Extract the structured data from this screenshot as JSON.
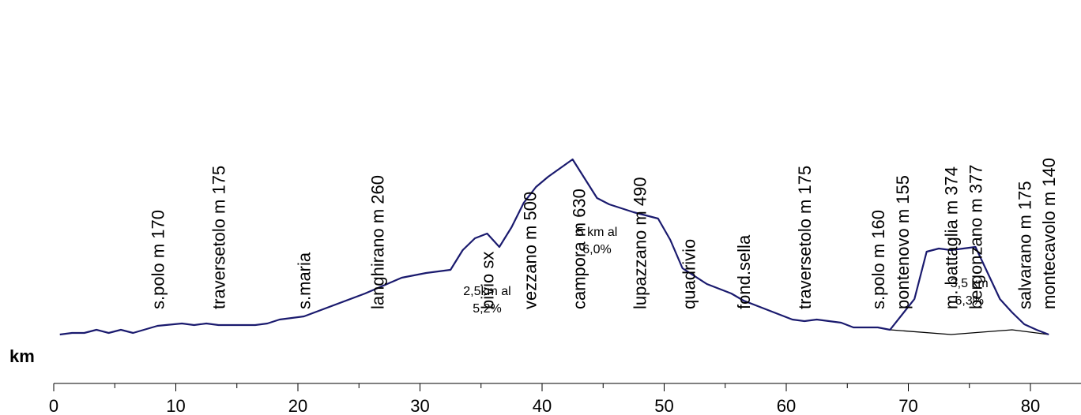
{
  "chart_data": {
    "type": "line",
    "x_unit_label": "km",
    "xlim": [
      0,
      84
    ],
    "x_ticks": [
      0,
      10,
      20,
      30,
      40,
      50,
      60,
      70,
      80
    ],
    "main_series": {
      "color": "#1a1a6e",
      "x": [
        0.5,
        1.5,
        2.5,
        3.5,
        4.5,
        5.5,
        6.5,
        8.5,
        10.5,
        11.5,
        12.5,
        13.5,
        16.5,
        17.5,
        18.5,
        20.5,
        25.5,
        28.5,
        30.5,
        32.5,
        33.5,
        34.5,
        35.5,
        36.5,
        37.5,
        38.5,
        39.5,
        40.5,
        42.5,
        44.5,
        45.5,
        47.5,
        49.5,
        50.5,
        51.5,
        53.5,
        55.5,
        56.5,
        59.5,
        60.5,
        61.5,
        62.5,
        64.5,
        65.5,
        67.5,
        68.5,
        70.5,
        71.5,
        72.5,
        73.5,
        74.5,
        75.5,
        77.5,
        78.5,
        79.5,
        80.5,
        81.5
      ],
      "y": [
        0,
        2,
        2,
        6,
        2,
        6,
        2,
        11,
        14,
        12,
        14,
        12,
        12,
        14,
        19,
        23,
        52,
        72,
        78,
        82,
        107,
        122,
        128,
        111,
        136,
        167,
        187,
        200,
        222,
        173,
        165,
        155,
        147,
        120,
        84,
        64,
        52,
        43,
        25,
        19,
        17,
        19,
        15,
        9,
        9,
        6,
        45,
        105,
        109,
        107,
        109,
        111,
        45,
        28,
        13,
        6,
        0
      ]
    },
    "bypass_series": {
      "color": "#000000",
      "x": [
        68.5,
        73.5,
        78.5,
        81.5
      ],
      "y": [
        6,
        0,
        6,
        0
      ]
    },
    "place_labels": [
      {
        "text": "s.polo m 170",
        "x": 8.5
      },
      {
        "text": "traversetolo m 175",
        "x": 13.5
      },
      {
        "text": "s.maria",
        "x": 20.5
      },
      {
        "text": "langhirano m 260",
        "x": 26.5
      },
      {
        "text": "bivio sx",
        "x": 35.5
      },
      {
        "text": "vezzano m 500",
        "x": 39.0
      },
      {
        "text": "campora m 630",
        "x": 43.0
      },
      {
        "text": "lupazzano m 490",
        "x": 48.0
      },
      {
        "text": "quadrivio",
        "x": 52.0
      },
      {
        "text": "fond.sella",
        "x": 56.5
      },
      {
        "text": "traversetolo m 175",
        "x": 61.5
      },
      {
        "text": "s.polo m 160",
        "x": 67.5
      },
      {
        "text": "pontenovo m 155",
        "x": 69.5
      },
      {
        "text": "m. battaglia m 374",
        "x": 73.5
      },
      {
        "text": "bergonzano m 377",
        "x": 75.5
      },
      {
        "text": "salvarano m 175",
        "x": 79.5
      },
      {
        "text": "montecavolo m 140",
        "x": 81.5
      }
    ],
    "grade_annotations": [
      {
        "lines": [
          "2,5km al",
          "5,2%"
        ],
        "x": 35.5,
        "y": 50
      },
      {
        "lines": [
          "5 km al",
          "6,0%"
        ],
        "x": 44.5,
        "y": 125
      },
      {
        "lines": [
          "3,5 km",
          "6,3%"
        ],
        "x": 75.0,
        "y": 60
      }
    ]
  }
}
